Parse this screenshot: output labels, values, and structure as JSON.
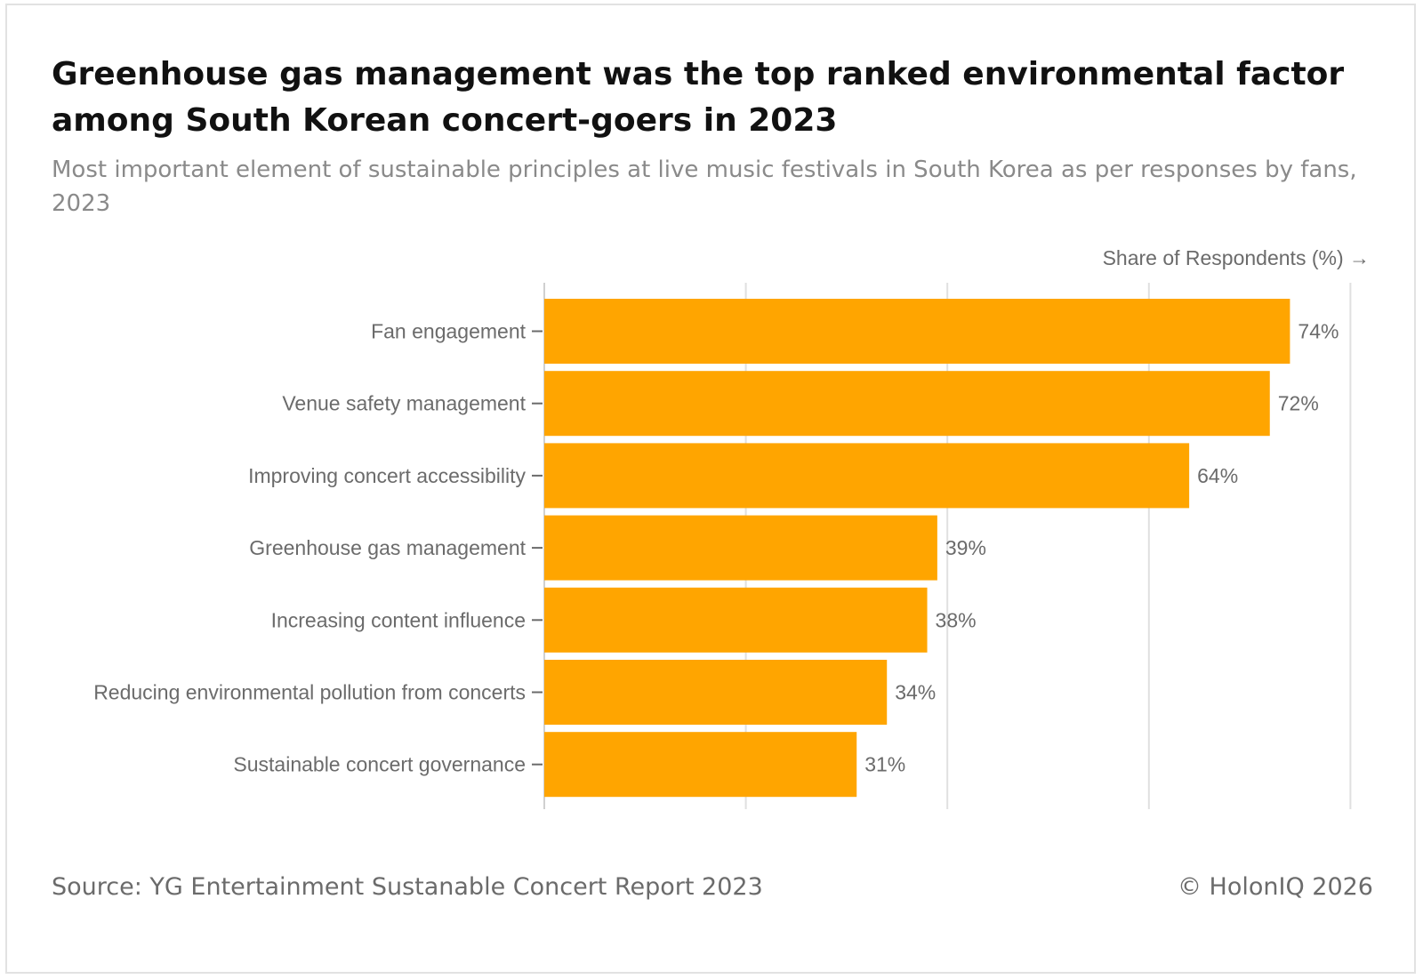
{
  "header": {
    "title": "Greenhouse gas management was the top ranked environmental factor among South Korean concert-goers in 2023",
    "subtitle": "Most important element of sustainable principles at live music festivals in South Korea as per responses by fans, 2023"
  },
  "chart_data": {
    "type": "bar",
    "orientation": "horizontal",
    "title": "Greenhouse gas management was the top ranked environmental factor among South Korean concert-goers in 2023",
    "xlabel": "Share of Respondents (%) →",
    "ylabel": "",
    "xlim": [
      0,
      80
    ],
    "grid": true,
    "categories": [
      "Fan engagement",
      "Venue safety management",
      "Improving concert accessibility",
      "Greenhouse gas management",
      "Increasing content influence",
      "Reducing environmental pollution from concerts",
      "Sustainable concert governance"
    ],
    "values": [
      74,
      72,
      64,
      39,
      38,
      34,
      31
    ],
    "value_labels": [
      "74%",
      "72%",
      "64%",
      "39%",
      "38%",
      "34%",
      "31%"
    ],
    "bar_color": "#FFA500",
    "grid_color": "#e0e0e0"
  },
  "footer": {
    "source": "Source: YG Entertainment Sustanable Concert Report 2023",
    "copyright": "© HolonIQ 2026"
  }
}
